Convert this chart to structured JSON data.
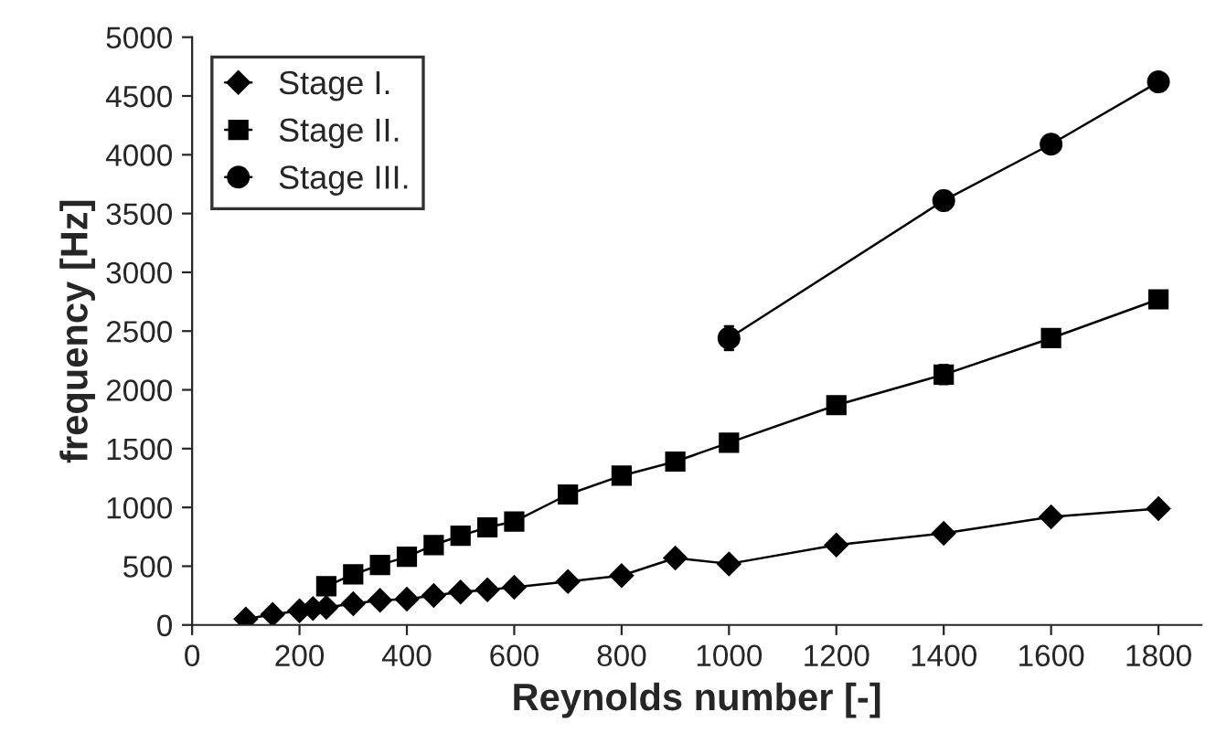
{
  "chart_data": {
    "type": "line",
    "xlabel": "Reynolds number [-]",
    "ylabel": "frequency [Hz]",
    "xlim": [
      0,
      1880
    ],
    "xticks": [
      0,
      200,
      400,
      600,
      800,
      1000,
      1200,
      1400,
      1600,
      1800
    ],
    "ylim": [
      0,
      5000
    ],
    "yticks": [
      0,
      500,
      1000,
      1500,
      2000,
      2500,
      3000,
      3500,
      4000,
      4500,
      5000
    ],
    "grid": false,
    "legend": "top left",
    "line_style": "solid",
    "series": [
      {
        "name": "Stage I.",
        "color": "#000000",
        "marker": "diamond",
        "x": [
          100,
          150,
          200,
          225,
          250,
          300,
          350,
          400,
          450,
          500,
          550,
          600,
          700,
          800,
          900,
          1000,
          1200,
          1400,
          1600,
          1800
        ],
        "values": [
          50,
          90,
          120,
          140,
          150,
          180,
          210,
          220,
          250,
          280,
          300,
          320,
          370,
          420,
          570,
          520,
          680,
          780,
          920,
          990
        ]
      },
      {
        "name": "Stage II.",
        "color": "#000000",
        "marker": "square",
        "x": [
          250,
          300,
          350,
          400,
          450,
          500,
          550,
          600,
          700,
          800,
          900,
          1000,
          1200,
          1400,
          1600,
          1800
        ],
        "values": [
          330,
          430,
          510,
          580,
          680,
          760,
          830,
          880,
          1110,
          1270,
          1390,
          1550,
          1870,
          2130,
          2440,
          2770
        ],
        "errors": [
          null,
          null,
          null,
          null,
          null,
          null,
          null,
          null,
          null,
          null,
          null,
          null,
          null,
          80,
          null,
          null
        ]
      },
      {
        "name": "Stage III.",
        "color": "#000000",
        "marker": "circle",
        "x": [
          1000,
          1400,
          1600,
          1800
        ],
        "values": [
          2440,
          3610,
          4090,
          4620
        ],
        "errors": [
          100,
          80,
          null,
          null
        ]
      }
    ]
  }
}
